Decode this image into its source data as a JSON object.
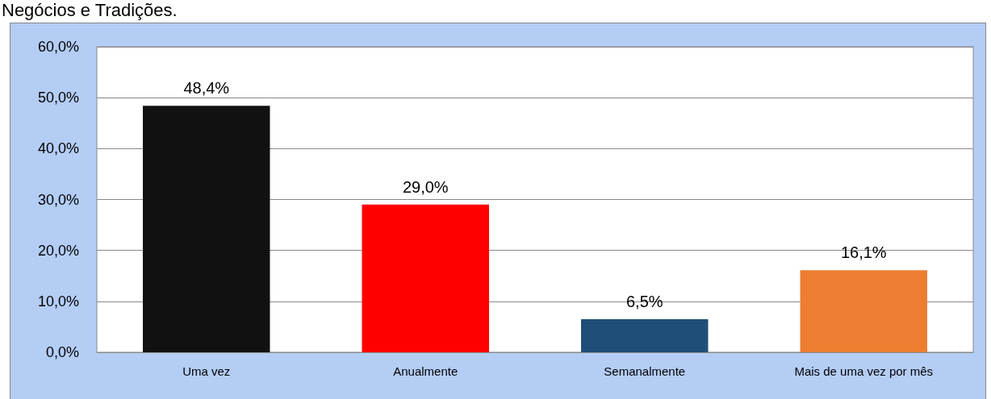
{
  "chart_data": {
    "type": "bar",
    "title": "Negócios e Tradições.",
    "categories": [
      "Uma vez",
      "Anualmente",
      "Semanalmente",
      "Mais de uma vez por mês"
    ],
    "values": [
      48.4,
      29.0,
      6.5,
      16.1
    ],
    "colors": [
      "#111111",
      "#ff0000",
      "#1f4e79",
      "#ed7d31"
    ],
    "value_labels": [
      "48,4%",
      "29,0%",
      "6,5%",
      "16,1%"
    ],
    "ylim": [
      0,
      60
    ],
    "yticks": [
      {
        "value": 0,
        "label": "0,0%"
      },
      {
        "value": 10,
        "label": "10,0%"
      },
      {
        "value": 20,
        "label": "20,0%"
      },
      {
        "value": 30,
        "label": "30,0%"
      },
      {
        "value": 40,
        "label": "40,0%"
      },
      {
        "value": 50,
        "label": "50,0%"
      },
      {
        "value": 60,
        "label": "60,0%"
      }
    ],
    "grid": "y"
  }
}
